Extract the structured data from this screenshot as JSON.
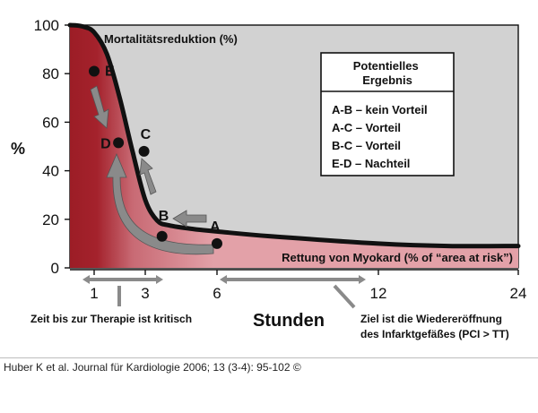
{
  "chart_data": {
    "type": "line",
    "ylabel": "%",
    "xlabel": "Stunden",
    "ylim": [
      0,
      100
    ],
    "yticks": [
      0,
      20,
      40,
      60,
      80,
      100
    ],
    "xticks": [
      {
        "h": 1,
        "label": "1"
      },
      {
        "h": 3,
        "label": "3"
      },
      {
        "h": 6,
        "label": "6"
      },
      {
        "h": 12,
        "label": "12"
      },
      {
        "h": 24,
        "label": "24"
      }
    ],
    "series": [
      {
        "name": "Mortalitätsreduktion (%)",
        "points": [
          [
            0,
            100
          ],
          [
            0.5,
            99.5
          ],
          [
            1,
            97
          ],
          [
            1.5,
            88
          ],
          [
            2,
            70
          ],
          [
            2.5,
            48
          ],
          [
            3,
            28
          ],
          [
            3.5,
            19.5
          ],
          [
            4,
            17.5
          ],
          [
            5,
            16
          ],
          [
            6,
            15
          ],
          [
            8,
            13
          ],
          [
            12,
            10
          ],
          [
            18,
            9
          ],
          [
            24,
            9
          ]
        ]
      }
    ],
    "area_label": "Rettung von Myokard (% of “area at risk”)",
    "points": [
      {
        "id": "E",
        "h": 1.0,
        "y": 81
      },
      {
        "id": "D",
        "h": 1.95,
        "y": 51.5
      },
      {
        "id": "C",
        "h": 2.95,
        "y": 48
      },
      {
        "id": "B",
        "h": 3.7,
        "y": 13
      },
      {
        "id": "A",
        "h": 6.0,
        "y": 10
      }
    ],
    "legend": {
      "title": "Potentielles Ergebnis",
      "items": [
        "A-B – kein Vorteil",
        "A-C – Vorteil",
        "B-C – Vorteil",
        "E-D – Nachteil"
      ]
    },
    "annotations": {
      "left": "Zeit bis zur Therapie ist kritisch",
      "right_line1": "Ziel ist die Wiedereröffnung",
      "right_line2": "des Infarktgefäßes (PCI > TT)"
    },
    "colors": {
      "plot_bg": "#d2d2d2",
      "area_red": "#9c1d26",
      "area_pink": "#e3a1a8",
      "curve": "#111111",
      "arrow": "#8a8a8a"
    }
  },
  "caption": "Huber K et al. Journal für Kardiologie 2006; 13 (3-4): 95-102 ©"
}
